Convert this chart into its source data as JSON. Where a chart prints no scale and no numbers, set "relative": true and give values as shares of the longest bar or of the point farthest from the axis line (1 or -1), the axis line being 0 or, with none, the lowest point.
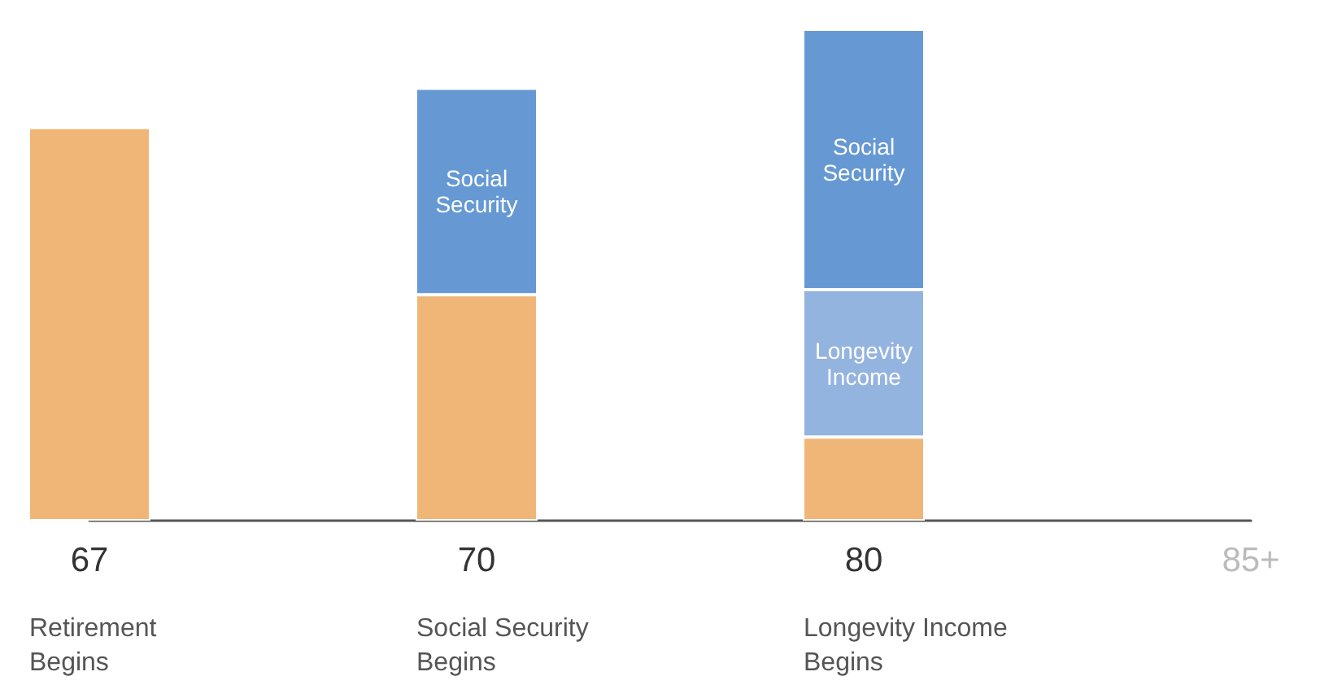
{
  "chart_data": {
    "type": "bar",
    "stacked": true,
    "relative": true,
    "data_labels": false,
    "categories": [
      "67",
      "70",
      "80",
      "85+"
    ],
    "series": [
      {
        "color": "#f0b678",
        "values": [
          0.8,
          0.46,
          0.17,
          null
        ]
      },
      {
        "name": "Longevity Income",
        "color": "#94b4e0",
        "values": [
          null,
          null,
          0.3,
          null
        ]
      },
      {
        "name": "Social Security",
        "color": "#6699d4",
        "values": [
          null,
          0.42,
          0.53,
          null
        ]
      }
    ],
    "annotations": [
      "Retirement\nBegins",
      "Social Security\nBegins",
      "Longevity Income\nBegins"
    ],
    "grid": false,
    "legend": false
  }
}
